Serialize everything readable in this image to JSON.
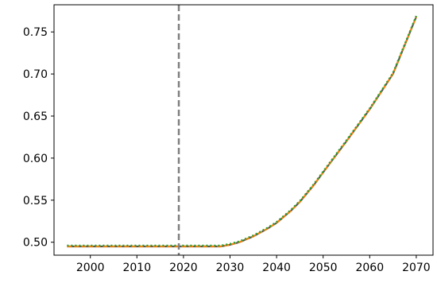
{
  "chart_data": {
    "type": "line",
    "title": "",
    "xlabel": "",
    "ylabel": "",
    "xlim": [
      1992.2,
      2073.6
    ],
    "ylim": [
      0.4846,
      0.7823
    ],
    "xticks": [
      2000,
      2010,
      2020,
      2030,
      2040,
      2050,
      2060,
      2070
    ],
    "yticks": [
      0.5,
      0.55,
      0.6,
      0.65,
      0.7,
      0.75
    ],
    "xtick_labels": [
      "2000",
      "2010",
      "2020",
      "2030",
      "2040",
      "2050",
      "2060",
      "2070"
    ],
    "ytick_labels": [
      "0.50",
      "0.55",
      "0.60",
      "0.65",
      "0.70",
      "0.75"
    ],
    "grid": false,
    "legend": "none",
    "reference_line": {
      "orientation": "vertical",
      "x": 2019,
      "style": "dashed",
      "color": "#808080"
    },
    "x": [
      1995,
      2000,
      2005,
      2010,
      2015,
      2020,
      2025,
      2028,
      2030,
      2032,
      2035,
      2038,
      2040,
      2043,
      2045,
      2048,
      2050,
      2055,
      2060,
      2065,
      2070
    ],
    "series": [
      {
        "color": "#555555",
        "style": "solid",
        "values": [
          0.495,
          0.495,
          0.495,
          0.495,
          0.495,
          0.495,
          0.495,
          0.495,
          0.497,
          0.5,
          0.507,
          0.516,
          0.523,
          0.537,
          0.548,
          0.568,
          0.583,
          0.62,
          0.658,
          0.7,
          0.768
        ]
      },
      {
        "color": "#ff7f0e",
        "style": "dashed",
        "values": [
          0.495,
          0.495,
          0.495,
          0.495,
          0.495,
          0.495,
          0.495,
          0.495,
          0.497,
          0.5,
          0.507,
          0.516,
          0.523,
          0.537,
          0.548,
          0.568,
          0.583,
          0.62,
          0.658,
          0.7,
          0.768
        ]
      },
      {
        "color": "#2ca02c",
        "style": "dotted",
        "values": [
          0.496,
          0.496,
          0.496,
          0.496,
          0.496,
          0.496,
          0.496,
          0.496,
          0.498,
          0.501,
          0.508,
          0.517,
          0.524,
          0.538,
          0.549,
          0.569,
          0.584,
          0.621,
          0.659,
          0.701,
          0.769
        ]
      }
    ]
  }
}
